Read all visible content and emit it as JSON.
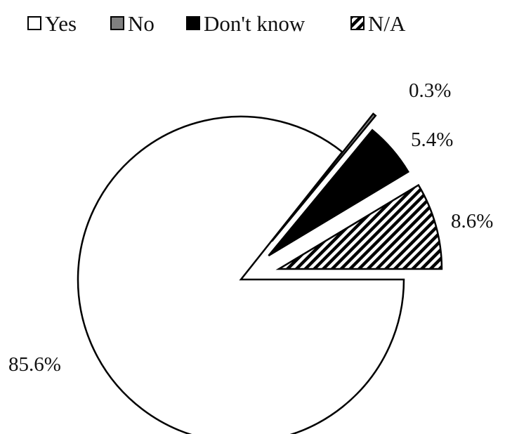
{
  "chart_data": {
    "type": "pie",
    "title": "",
    "legend_position": "top",
    "exploded": true,
    "slices": [
      {
        "label": "Yes",
        "value": 85.6,
        "data_label": "85.6%",
        "fill": "#ffffff",
        "pattern": "none"
      },
      {
        "label": "No",
        "value": 0.3,
        "data_label": "0.3%",
        "fill": "#808080",
        "pattern": "none"
      },
      {
        "label": "Don't know",
        "value": 5.4,
        "data_label": "5.4%",
        "fill": "#000000",
        "pattern": "none"
      },
      {
        "label": "N/A",
        "value": 8.6,
        "data_label": "8.6%",
        "fill": "#000000",
        "pattern": "diagonal-stripes"
      }
    ]
  }
}
